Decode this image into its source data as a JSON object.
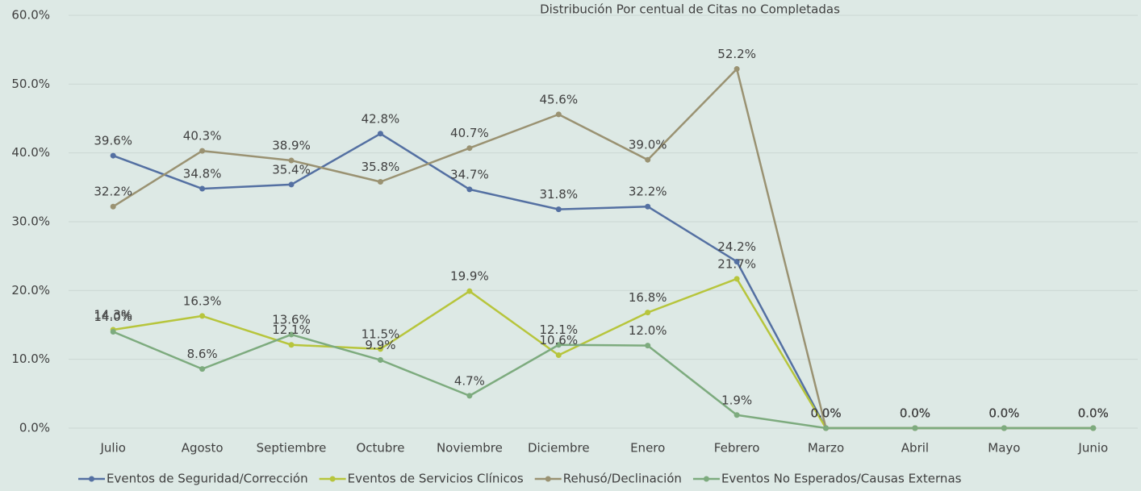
{
  "chart_data": {
    "type": "line",
    "title": "Distribución Por centual de Citas no Completadas",
    "categories": [
      "Julio",
      "Agosto",
      "Septiembre",
      "Octubre",
      "Noviembre",
      "Diciembre",
      "Enero",
      "Febrero",
      "Marzo",
      "Abril",
      "Mayo",
      "Junio"
    ],
    "series": [
      {
        "name": "Eventos de Seguridad/Corrección",
        "color": "#5470a2",
        "values": [
          39.6,
          34.8,
          35.4,
          42.8,
          34.7,
          31.8,
          32.2,
          24.2,
          0,
          0,
          0,
          0
        ],
        "value_labels": [
          "39.6%",
          "34.8%",
          "35.4%",
          "42.8%",
          "34.7%",
          "31.8%",
          "32.2%",
          "24.2%",
          "0.0%",
          "0.0%",
          "0.0%",
          "0.0%"
        ]
      },
      {
        "name": "Eventos de Servicios Clínicos",
        "color": "#b7c53c",
        "values": [
          14.3,
          16.3,
          12.1,
          11.5,
          19.9,
          10.6,
          16.8,
          21.7,
          0,
          0,
          0,
          0
        ],
        "value_labels": [
          "14.3%",
          "16.3%",
          "12.1%",
          "11.5%",
          "19.9%",
          "10.6%",
          "16.8%",
          "21.7%",
          "0.0%",
          "0.0%",
          "0.0%",
          "0.0%"
        ]
      },
      {
        "name": "Rehusó/Declinación",
        "color": "#9a9272",
        "values": [
          32.2,
          40.3,
          38.9,
          35.8,
          40.7,
          45.6,
          39.0,
          52.2,
          0,
          0,
          0,
          0
        ],
        "value_labels": [
          "32.2%",
          "40.3%",
          "38.9%",
          "35.8%",
          "40.7%",
          "45.6%",
          "39.0%",
          "52.2%",
          "0.0%",
          "0.0%",
          "0.0%",
          "0.0%"
        ]
      },
      {
        "name": "Eventos No Esperados/Causas Externas",
        "color": "#7dab7e",
        "values": [
          14.0,
          8.6,
          13.6,
          9.9,
          4.7,
          12.1,
          12.0,
          1.9,
          0,
          0,
          0,
          0
        ],
        "value_labels": [
          "14.0%",
          "8.6%",
          "13.6%",
          "9.9%",
          "4.7%",
          "12.1%",
          "12.0%",
          "1.9%",
          "0.0%",
          "0.0%",
          "0.0%",
          "0.0%"
        ]
      }
    ],
    "ylim": [
      0,
      60
    ],
    "yticks": [
      {
        "value": 0,
        "label": "0.0%"
      },
      {
        "value": 10,
        "label": "10.0%"
      },
      {
        "value": 20,
        "label": "20.0%"
      },
      {
        "value": 30,
        "label": "30.0%"
      },
      {
        "value": 40,
        "label": "40.0%"
      },
      {
        "value": 50,
        "label": "50.0%"
      },
      {
        "value": 60,
        "label": "60.0%"
      }
    ],
    "grid": true,
    "legend": "bottom"
  }
}
